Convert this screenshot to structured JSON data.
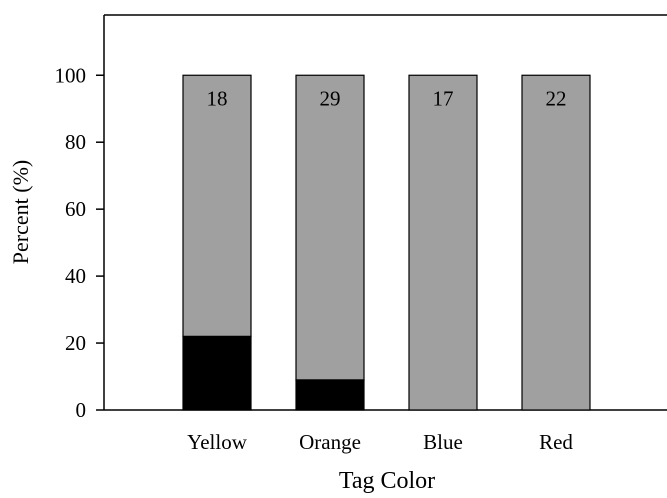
{
  "chart_data": {
    "type": "bar",
    "stacked": true,
    "categories": [
      "Yellow",
      "Orange",
      "Blue",
      "Red"
    ],
    "series": [
      {
        "values": [
          22,
          9,
          0,
          0
        ],
        "color": "#000000"
      },
      {
        "values": [
          78,
          91,
          100,
          100
        ],
        "color": "#a0a0a0"
      }
    ],
    "bar_labels": [
      "18",
      "29",
      "17",
      "22"
    ],
    "xlabel": "Tag Color",
    "ylabel": "Percent (%)",
    "ylim": [
      0,
      118
    ],
    "yticks": [
      0,
      20,
      40,
      60,
      80,
      100
    ],
    "ytick_labels": [
      "0",
      "20",
      "40",
      "60",
      "80",
      "100"
    ],
    "grid": false,
    "legend": "none"
  }
}
